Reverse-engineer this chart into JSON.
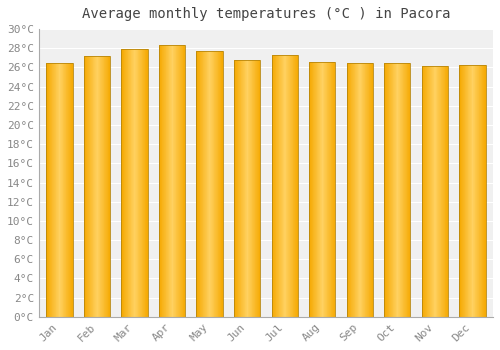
{
  "title": "Average monthly temperatures (°C ) in Pacora",
  "months": [
    "Jan",
    "Feb",
    "Mar",
    "Apr",
    "May",
    "Jun",
    "Jul",
    "Aug",
    "Sep",
    "Oct",
    "Nov",
    "Dec"
  ],
  "temperatures": [
    26.5,
    27.2,
    27.9,
    28.3,
    27.7,
    26.8,
    27.3,
    26.6,
    26.5,
    26.5,
    26.1,
    26.3
  ],
  "bar_color_center": "#FFD060",
  "bar_color_edge": "#F5A800",
  "bar_border_color": "#B8860B",
  "ylim": [
    0,
    30
  ],
  "ytick_step": 2,
  "background_color": "#ffffff",
  "plot_bg_color": "#f0f0f0",
  "grid_color": "#ffffff",
  "title_fontsize": 10,
  "tick_fontsize": 8,
  "tick_color": "#888888",
  "title_color": "#444444",
  "font_family": "monospace",
  "bar_width": 0.7
}
